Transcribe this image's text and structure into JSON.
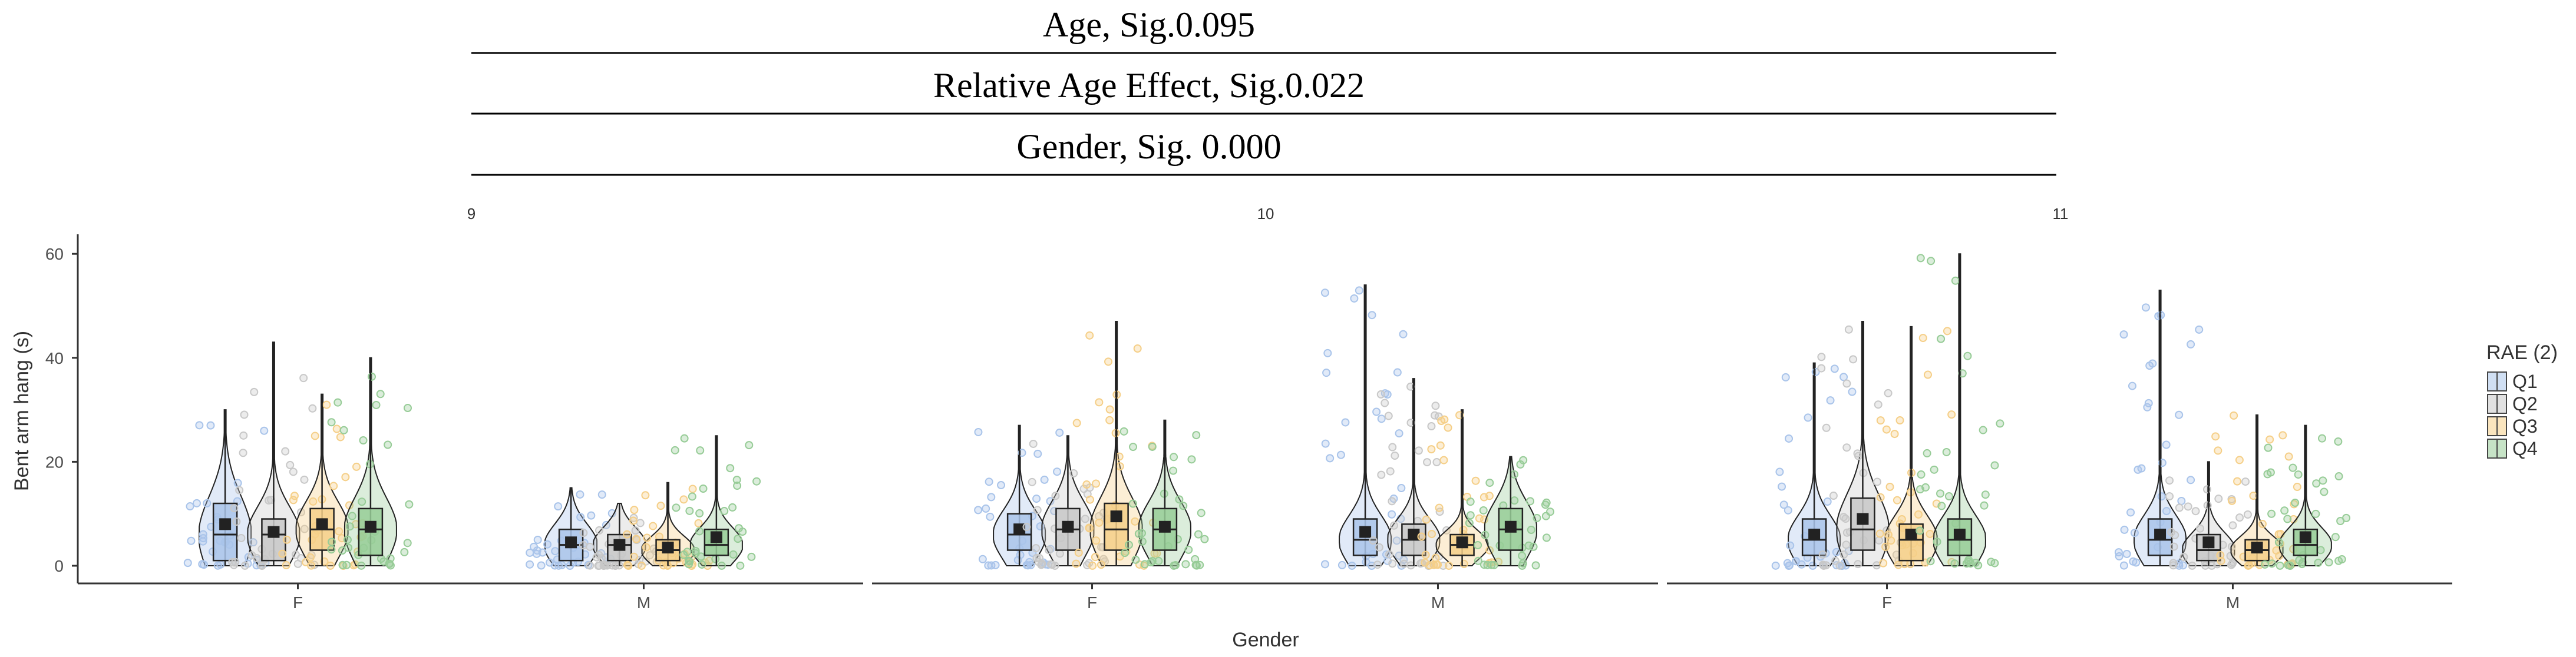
{
  "header": {
    "lines": [
      "Age, Sig.0.095",
      "Relative Age Effect, Sig.0.022",
      "Gender, Sig. 0.000"
    ]
  },
  "chart_data": {
    "type": "violin",
    "ylabel": "Bent arm hang (s)",
    "xlabel": "Gender",
    "ylim": [
      -3,
      64
    ],
    "yticks": [
      0,
      20,
      40,
      60
    ],
    "facets": [
      "9",
      "10",
      "11"
    ],
    "categories": [
      "F",
      "M"
    ],
    "legend": {
      "title": "RAE (2)",
      "position": "right",
      "series": [
        {
          "name": "Q1",
          "color": "#a9c4ea"
        },
        {
          "name": "Q2",
          "color": "#c8c8c8"
        },
        {
          "name": "Q3",
          "color": "#f5cf88"
        },
        {
          "name": "Q4",
          "color": "#97cc97"
        }
      ]
    },
    "groups": [
      {
        "facet": "9",
        "gender": "F",
        "series": "Q1",
        "min": 0,
        "q1": 1,
        "median": 6,
        "q3": 12,
        "max": 30,
        "mean": 8
      },
      {
        "facet": "9",
        "gender": "F",
        "series": "Q2",
        "min": 0,
        "q1": 1,
        "median": 6,
        "q3": 9,
        "max": 43,
        "mean": 6.5
      },
      {
        "facet": "9",
        "gender": "F",
        "series": "Q3",
        "min": 0,
        "q1": 3,
        "median": 7,
        "q3": 11,
        "max": 33,
        "mean": 8
      },
      {
        "facet": "9",
        "gender": "F",
        "series": "Q4",
        "min": 0,
        "q1": 2,
        "median": 7,
        "q3": 11,
        "max": 40,
        "mean": 7.5
      },
      {
        "facet": "9",
        "gender": "M",
        "series": "Q1",
        "min": 0,
        "q1": 1,
        "median": 4,
        "q3": 7,
        "max": 15,
        "mean": 4.5
      },
      {
        "facet": "9",
        "gender": "M",
        "series": "Q2",
        "min": 0,
        "q1": 1,
        "median": 4,
        "q3": 6,
        "max": 12,
        "mean": 4
      },
      {
        "facet": "9",
        "gender": "M",
        "series": "Q3",
        "min": 0,
        "q1": 1,
        "median": 3,
        "q3": 5,
        "max": 16,
        "mean": 3.5
      },
      {
        "facet": "9",
        "gender": "M",
        "series": "Q4",
        "min": 0,
        "q1": 2,
        "median": 4,
        "q3": 7,
        "max": 25,
        "mean": 5.5
      },
      {
        "facet": "10",
        "gender": "F",
        "series": "Q1",
        "min": 0,
        "q1": 3,
        "median": 6,
        "q3": 10,
        "max": 27,
        "mean": 7
      },
      {
        "facet": "10",
        "gender": "F",
        "series": "Q2",
        "min": 0,
        "q1": 3,
        "median": 7,
        "q3": 11,
        "max": 25,
        "mean": 7.5
      },
      {
        "facet": "10",
        "gender": "F",
        "series": "Q3",
        "min": 0,
        "q1": 3,
        "median": 7,
        "q3": 12,
        "max": 47,
        "mean": 9.5
      },
      {
        "facet": "10",
        "gender": "F",
        "series": "Q4",
        "min": 0,
        "q1": 3,
        "median": 7,
        "q3": 11,
        "max": 28,
        "mean": 7.5
      },
      {
        "facet": "10",
        "gender": "M",
        "series": "Q1",
        "min": 0,
        "q1": 2,
        "median": 5,
        "q3": 9,
        "max": 54,
        "mean": 6.5
      },
      {
        "facet": "10",
        "gender": "M",
        "series": "Q2",
        "min": 0,
        "q1": 2,
        "median": 5,
        "q3": 8,
        "max": 36,
        "mean": 6
      },
      {
        "facet": "10",
        "gender": "M",
        "series": "Q3",
        "min": 0,
        "q1": 2,
        "median": 4,
        "q3": 6,
        "max": 30,
        "mean": 4.5
      },
      {
        "facet": "10",
        "gender": "M",
        "series": "Q4",
        "min": 0,
        "q1": 3,
        "median": 7,
        "q3": 11,
        "max": 21,
        "mean": 7.5
      },
      {
        "facet": "11",
        "gender": "F",
        "series": "Q1",
        "min": 0,
        "q1": 2,
        "median": 5,
        "q3": 9,
        "max": 39,
        "mean": 6
      },
      {
        "facet": "11",
        "gender": "F",
        "series": "Q2",
        "min": 0,
        "q1": 3,
        "median": 7,
        "q3": 13,
        "max": 47,
        "mean": 9
      },
      {
        "facet": "11",
        "gender": "F",
        "series": "Q3",
        "min": 0,
        "q1": 1,
        "median": 5,
        "q3": 8,
        "max": 46,
        "mean": 6
      },
      {
        "facet": "11",
        "gender": "F",
        "series": "Q4",
        "min": 0,
        "q1": 2,
        "median": 5,
        "q3": 9,
        "max": 60,
        "mean": 6
      },
      {
        "facet": "11",
        "gender": "M",
        "series": "Q1",
        "min": 0,
        "q1": 2,
        "median": 5,
        "q3": 9,
        "max": 53,
        "mean": 6
      },
      {
        "facet": "11",
        "gender": "M",
        "series": "Q2",
        "min": 0,
        "q1": 1,
        "median": 3,
        "q3": 6,
        "max": 20,
        "mean": 4.5
      },
      {
        "facet": "11",
        "gender": "M",
        "series": "Q3",
        "min": 0,
        "q1": 1,
        "median": 3,
        "q3": 5,
        "max": 29,
        "mean": 3.5
      },
      {
        "facet": "11",
        "gender": "M",
        "series": "Q4",
        "min": 0,
        "q1": 2,
        "median": 4,
        "q3": 7,
        "max": 27,
        "mean": 5.5
      }
    ]
  }
}
